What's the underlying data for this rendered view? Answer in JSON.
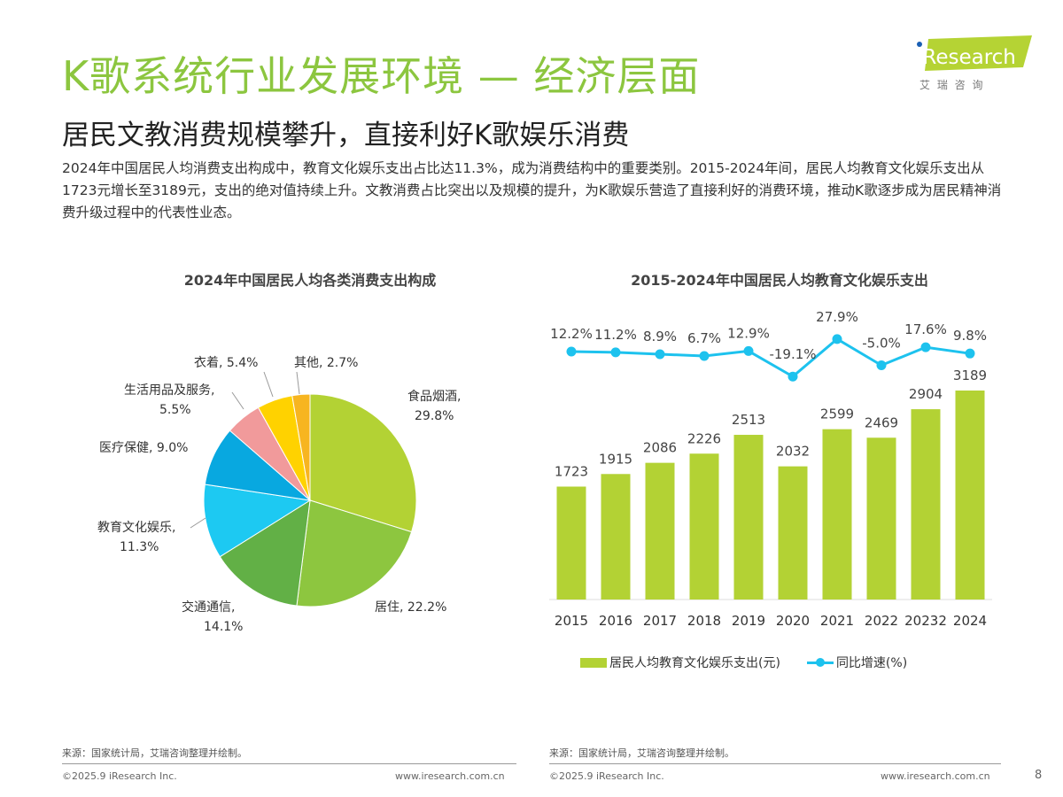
{
  "header": {
    "title": "K歌系统行业发展环境 — 经济层面",
    "subtitle": "居民文教消费规模攀升，直接利好K歌娱乐消费",
    "description": "2024年中国居民人均消费支出构成中，教育文化娱乐支出占比达11.3%，成为消费结构中的重要类别。2015-2024年间，居民人均教育文化娱乐支出从1723元增长至3189元，支出的绝对值持续上升。文教消费占比突出以及规模的提升，为K歌娱乐营造了直接利好的消费环境，推动K歌逐步成为居民精神消费升级过程中的代表性业态。"
  },
  "logo": {
    "text": "iResearch",
    "subtext": "艾 瑞 咨 询",
    "color": "#b5d334"
  },
  "chart_data": [
    {
      "type": "pie",
      "title": "2024年中国居民人均各类消费支出构成",
      "slices": [
        {
          "label": "食品烟酒",
          "value": 29.8,
          "display": "29.8%",
          "color": "#b3d234"
        },
        {
          "label": "居住",
          "value": 22.2,
          "display": "22.2%",
          "color": "#8dc63f"
        },
        {
          "label": "交通通信",
          "value": 14.1,
          "display": "14.1%",
          "color": "#62b046"
        },
        {
          "label": "教育文化娱乐",
          "value": 11.3,
          "display": "11.3%",
          "color": "#1dc9f2"
        },
        {
          "label": "医疗保健",
          "value": 9.0,
          "display": "9.0%",
          "color": "#08a8e0"
        },
        {
          "label": "生活用品及服务",
          "value": 5.5,
          "display": "5.5%",
          "color": "#f19a9b"
        },
        {
          "label": "衣着",
          "value": 5.4,
          "display": "5.4%",
          "color": "#ffd200"
        },
        {
          "label": "其他",
          "value": 2.7,
          "display": "2.7%",
          "color": "#f7b520"
        }
      ]
    },
    {
      "type": "bar+line",
      "title": "2015-2024年中国居民人均教育文化娱乐支出",
      "categories": [
        "2015",
        "2016",
        "2017",
        "2018",
        "2019",
        "2020",
        "2021",
        "2022",
        "20232",
        "2024"
      ],
      "series": [
        {
          "name": "居民人均教育文化娱乐支出(元)",
          "type": "bar",
          "color": "#b3d234",
          "values": [
            1723,
            1915,
            2086,
            2226,
            2513,
            2032,
            2599,
            2469,
            2904,
            3189
          ]
        },
        {
          "name": "同比增速(%)",
          "type": "line",
          "color": "#1dc2ee",
          "values": [
            12.2,
            11.2,
            8.9,
            6.7,
            12.9,
            -19.1,
            27.9,
            -5.0,
            17.6,
            9.8
          ],
          "labels": [
            "12.2%",
            "11.2%",
            "8.9%",
            "6.7%",
            "12.9%",
            "-19.1%",
            "27.9%",
            "-5.0%",
            "17.6%",
            "9.8%"
          ]
        }
      ],
      "legend": "bottom"
    }
  ],
  "footer": {
    "source": "来源：国家统计局，艾瑞咨询整理并绘制。",
    "copyright": "©2025.9 iResearch Inc.",
    "url": "www.iresearch.com.cn",
    "page": "8"
  }
}
